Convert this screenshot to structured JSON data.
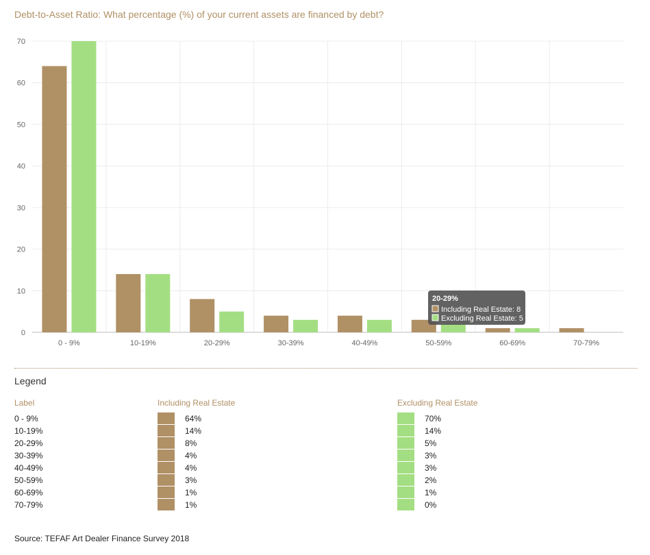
{
  "colors": {
    "including": "#b09065",
    "excluding": "#a4de83",
    "accent": "#b09065"
  },
  "chart_data": {
    "type": "bar",
    "title": "Debt-to-Asset Ratio: What percentage (%) of your current assets are financed by debt?",
    "categories": [
      "0 - 9%",
      "10-19%",
      "20-29%",
      "30-39%",
      "40-49%",
      "50-59%",
      "60-69%",
      "70-79%"
    ],
    "series": [
      {
        "name": "Including Real Estate",
        "values": [
          64,
          14,
          8,
          4,
          4,
          3,
          1,
          1
        ]
      },
      {
        "name": "Excluding Real Estate",
        "values": [
          70,
          14,
          5,
          3,
          3,
          2,
          1,
          0
        ]
      }
    ],
    "yticks": [
      0,
      10,
      20,
      30,
      40,
      50,
      60,
      70
    ],
    "ylim": [
      0,
      70
    ],
    "xlabel": "",
    "ylabel": "",
    "tooltip": {
      "title": "20-29%",
      "line1": "Including Real Estate: 8",
      "line2": "Excluding Real Estate: 5"
    }
  },
  "legend": {
    "heading": "Legend",
    "col_label": "Label",
    "col_including": "Including Real Estate",
    "col_excluding": "Excluding Real Estate",
    "rows": [
      {
        "label": "0 - 9%",
        "including": "64%",
        "excluding": "70%"
      },
      {
        "label": "10-19%",
        "including": "14%",
        "excluding": "14%"
      },
      {
        "label": "20-29%",
        "including": "8%",
        "excluding": "5%"
      },
      {
        "label": "30-39%",
        "including": "4%",
        "excluding": "3%"
      },
      {
        "label": "40-49%",
        "including": "4%",
        "excluding": "3%"
      },
      {
        "label": "50-59%",
        "including": "3%",
        "excluding": "2%"
      },
      {
        "label": "60-69%",
        "including": "1%",
        "excluding": "1%"
      },
      {
        "label": "70-79%",
        "including": "1%",
        "excluding": "0%"
      }
    ]
  },
  "source": "Source: TEFAF Art Dealer Finance Survey 2018"
}
